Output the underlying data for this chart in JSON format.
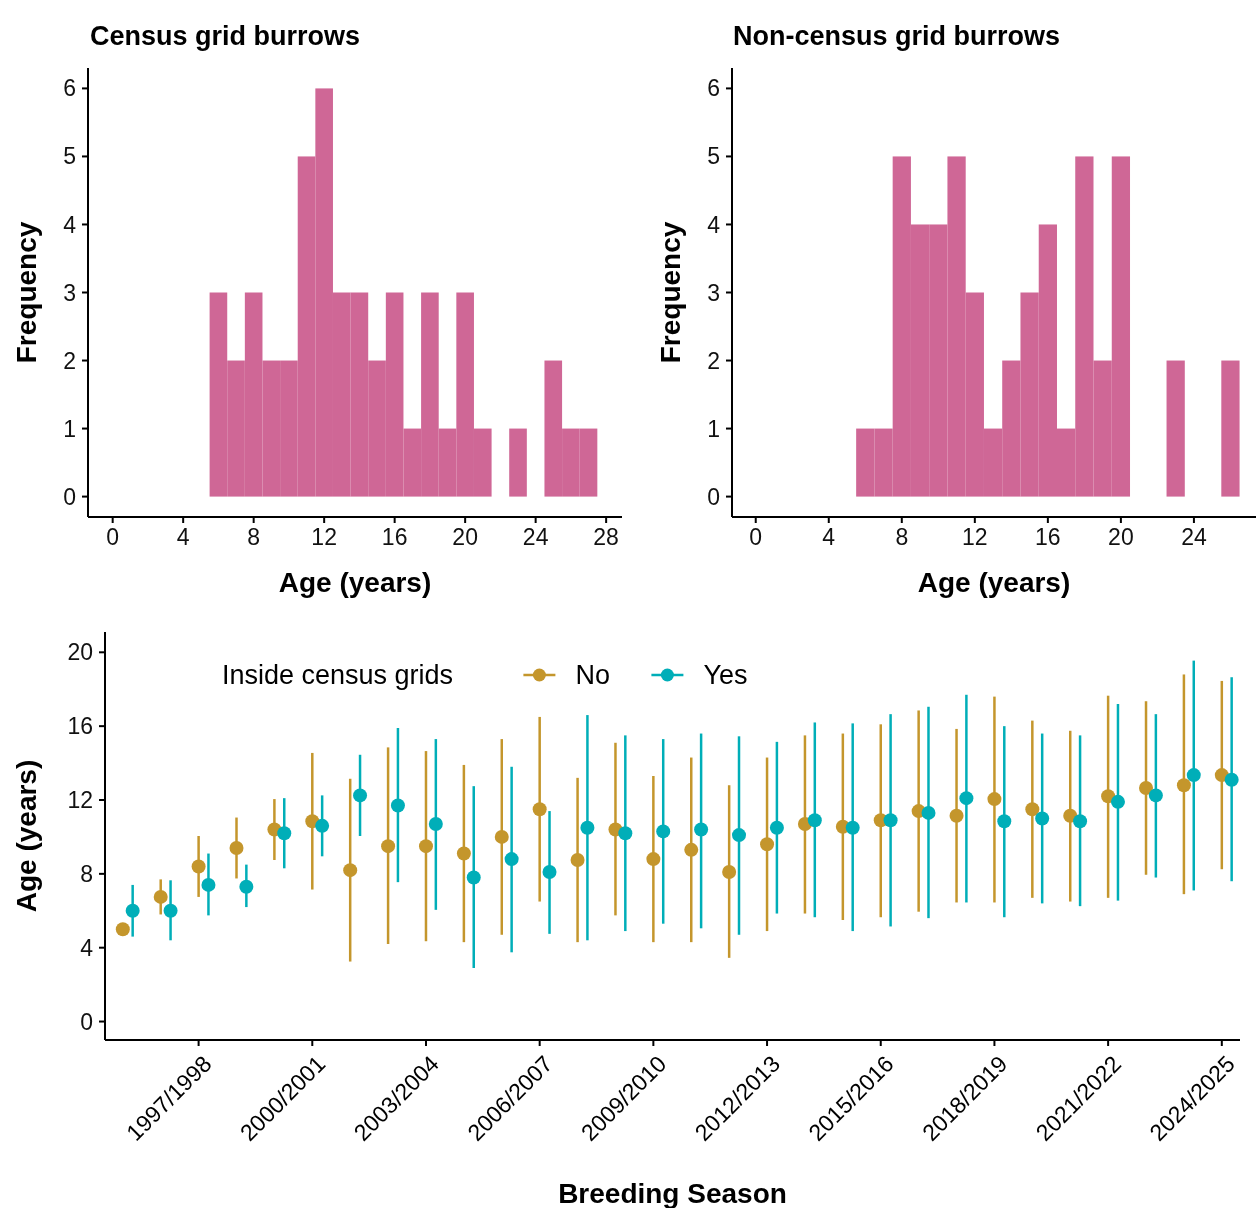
{
  "chart_data": [
    {
      "type": "histogram",
      "title": "Census grid burrows",
      "xlabel": "Age (years)",
      "ylabel": "Frequency",
      "color": "#cf6796",
      "bins": [
        5.5,
        6.5,
        7.5,
        8.5,
        9.5,
        10.5,
        11.5,
        12.5,
        13.5,
        14.5,
        15.5,
        16.5,
        17.5,
        18.5,
        19.5,
        20.5,
        21.5,
        22.5,
        23.5,
        24.5,
        25.5,
        26.5,
        27.5
      ],
      "values": [
        3,
        2,
        3,
        2,
        2,
        5,
        6,
        3,
        3,
        2,
        3,
        1,
        3,
        1,
        3,
        1,
        0,
        1,
        0,
        2,
        1,
        1
      ],
      "xlim": [
        -1.4,
        28.9
      ],
      "xticks": [
        0,
        4,
        8,
        12,
        16,
        20,
        24,
        28
      ],
      "ylim": [
        -0.3,
        6.3
      ],
      "yticks": [
        0,
        1,
        2,
        3,
        4,
        5,
        6
      ]
    },
    {
      "type": "histogram",
      "title": "Non-census grid burrows",
      "xlabel": "Age (years)",
      "ylabel": "Frequency",
      "color": "#cf6796",
      "bins": [
        5.5,
        6.5,
        7.5,
        8.5,
        9.5,
        10.5,
        11.5,
        12.5,
        13.5,
        14.5,
        15.5,
        16.5,
        17.5,
        18.5,
        19.5,
        20.5,
        21.5,
        22.5,
        23.5,
        24.5,
        25.5,
        26.5
      ],
      "values": [
        1,
        1,
        5,
        4,
        4,
        5,
        3,
        1,
        2,
        3,
        4,
        1,
        5,
        2,
        5,
        0,
        0,
        2,
        0,
        0,
        2
      ],
      "xlim": [
        -1.3,
        27.4
      ],
      "xticks": [
        0,
        4,
        8,
        12,
        16,
        20,
        24
      ],
      "ylim": [
        -0.3,
        6.3
      ],
      "yticks": [
        0,
        1,
        2,
        3,
        4,
        5,
        6
      ]
    },
    {
      "type": "scatter",
      "xlabel": "Breeding Season",
      "ylabel": "Age (years)",
      "legend_title": "Inside census grids",
      "legend": "top",
      "marker": "circle",
      "categories": [
        null,
        null,
        "1997/1998",
        null,
        null,
        "2000/2001",
        null,
        null,
        "2003/2004",
        null,
        null,
        "2006/2007",
        null,
        null,
        "2009/2010",
        null,
        null,
        "2012/2013",
        null,
        null,
        "2015/2016",
        null,
        null,
        "2018/2019",
        null,
        null,
        "2021/2022",
        null,
        null,
        "2024/2025"
      ],
      "ylim": [
        -1,
        21.1
      ],
      "yticks": [
        0,
        4,
        8,
        12,
        16,
        20
      ],
      "series": [
        {
          "name": "No",
          "color": "#c4962c",
          "values": [
            5.0,
            6.75,
            8.4,
            9.4,
            10.4,
            10.85,
            8.2,
            9.5,
            9.5,
            9.1,
            10.0,
            11.5,
            8.75,
            10.4,
            8.8,
            9.3,
            8.1,
            9.6,
            10.7,
            10.55,
            10.9,
            11.4,
            11.15,
            12.05,
            11.5,
            11.15,
            12.2,
            12.65,
            12.8,
            13.35
          ],
          "errors": [
            null,
            [
              5.8,
              7.7
            ],
            [
              6.75,
              10.05
            ],
            [
              7.75,
              11.05
            ],
            [
              8.75,
              12.05
            ],
            [
              7.15,
              14.55
            ],
            [
              3.25,
              13.15
            ],
            [
              4.2,
              14.85
            ],
            [
              4.35,
              14.65
            ],
            [
              4.3,
              13.9
            ],
            [
              4.7,
              15.3
            ],
            [
              6.5,
              16.5
            ],
            [
              4.3,
              13.2
            ],
            [
              5.75,
              15.1
            ],
            [
              4.3,
              13.3
            ],
            [
              4.3,
              14.3
            ],
            [
              3.45,
              12.8
            ],
            [
              4.9,
              14.3
            ],
            [
              5.85,
              15.5
            ],
            [
              5.5,
              15.6
            ],
            [
              5.65,
              16.1
            ],
            [
              5.95,
              16.85
            ],
            [
              6.45,
              15.85
            ],
            [
              6.45,
              17.6
            ],
            [
              6.7,
              16.3
            ],
            [
              6.5,
              15.75
            ],
            [
              6.7,
              17.65
            ],
            [
              7.95,
              17.35
            ],
            [
              6.9,
              18.8
            ],
            [
              8.25,
              18.45
            ]
          ]
        },
        {
          "name": "Yes",
          "color": "#00aeb8",
          "values": [
            6.0,
            6.0,
            7.4,
            7.3,
            10.2,
            10.6,
            12.25,
            11.7,
            10.7,
            7.8,
            8.8,
            8.1,
            10.5,
            10.2,
            10.3,
            10.4,
            10.1,
            10.5,
            10.9,
            10.5,
            10.9,
            11.3,
            12.1,
            10.85,
            11.0,
            10.85,
            11.9,
            12.25,
            13.35,
            13.1
          ],
          "errors": [
            [
              4.6,
              7.4
            ],
            [
              4.4,
              7.65
            ],
            [
              5.75,
              9.1
            ],
            [
              6.2,
              8.5
            ],
            [
              8.3,
              12.1
            ],
            [
              8.95,
              12.25
            ],
            [
              10.05,
              14.45
            ],
            [
              7.55,
              15.9
            ],
            [
              6.05,
              15.3
            ],
            [
              2.9,
              12.75
            ],
            [
              3.75,
              13.8
            ],
            [
              4.75,
              11.4
            ],
            [
              4.4,
              16.6
            ],
            [
              4.9,
              15.5
            ],
            [
              5.3,
              15.3
            ],
            [
              5.05,
              15.6
            ],
            [
              4.7,
              15.45
            ],
            [
              5.85,
              15.15
            ],
            [
              5.65,
              16.2
            ],
            [
              4.9,
              16.15
            ],
            [
              5.15,
              16.65
            ],
            [
              5.6,
              17.05
            ],
            [
              6.45,
              17.7
            ],
            [
              5.65,
              16.0
            ],
            [
              6.4,
              15.6
            ],
            [
              6.25,
              15.5
            ],
            [
              6.55,
              17.2
            ],
            [
              7.8,
              16.65
            ],
            [
              7.1,
              19.55
            ],
            [
              7.6,
              18.65
            ]
          ]
        }
      ]
    }
  ]
}
